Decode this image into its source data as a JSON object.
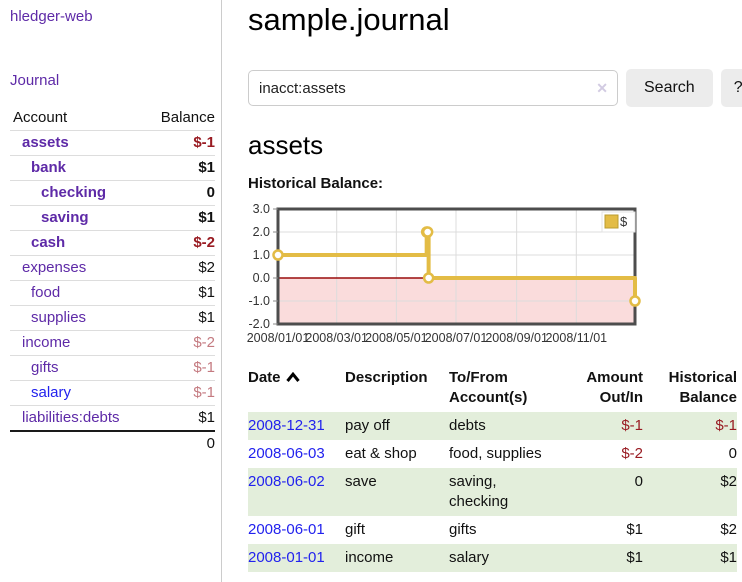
{
  "app": {
    "title": "hledger-web"
  },
  "colors": {
    "accent_purple": "#5e2aa7",
    "link_blue": "#2222ee",
    "negative_strong": "#991b22",
    "negative_soft": "#c47a80",
    "row_green": "#e3eedb",
    "chart_line_gold": "#e3bc45",
    "chart_negative_fill": "#fadcdc",
    "chart_zero_line": "#990b0b"
  },
  "sidebar": {
    "journal_link": "Journal",
    "accounts": {
      "col_account": "Account",
      "col_balance": "Balance",
      "rows": [
        {
          "account": "assets",
          "balance": "$-1",
          "level": 1,
          "bold": true,
          "neg": "strong"
        },
        {
          "account": "bank",
          "balance": "$1",
          "level": 2,
          "bold": true
        },
        {
          "account": "checking",
          "balance": "0",
          "level": 3,
          "bold": true
        },
        {
          "account": "saving",
          "balance": "$1",
          "level": 3,
          "bold": true
        },
        {
          "account": "cash",
          "balance": "$-2",
          "level": 2,
          "bold": true,
          "neg": "strong"
        },
        {
          "account": "expenses",
          "balance": "$2",
          "level": 1
        },
        {
          "account": "food",
          "balance": "$1",
          "level": 2
        },
        {
          "account": "supplies",
          "balance": "$1",
          "level": 2
        },
        {
          "account": "income",
          "balance": "$-2",
          "level": 1,
          "neg": "soft"
        },
        {
          "account": "gifts",
          "balance": "$-1",
          "level": 2,
          "neg": "soft"
        },
        {
          "account": "salary",
          "balance": "$-1",
          "level": 2,
          "neg": "soft",
          "blue": true
        },
        {
          "account": "liabilities:debts",
          "balance": "$1",
          "level": 1
        }
      ],
      "total": "0"
    }
  },
  "main": {
    "title": "sample.journal",
    "search": {
      "value": "inacct:assets",
      "clear_label": "✕",
      "search_button": "Search",
      "help_button": "?"
    },
    "account_heading": "assets",
    "section_label": "Historical Balance:"
  },
  "chart_data": {
    "type": "line",
    "title": "Historical Balance:",
    "step": "after",
    "series": [
      {
        "name": "$",
        "color": "#e3bc45",
        "points": [
          {
            "date": "2008-01-01",
            "value": 1
          },
          {
            "date": "2008-06-01",
            "value": 2
          },
          {
            "date": "2008-06-02",
            "value": 2
          },
          {
            "date": "2008-06-03",
            "value": 0
          },
          {
            "date": "2008-12-31",
            "value": -1
          }
        ]
      }
    ],
    "x_range": [
      "2008-01-01",
      "2008-12-31"
    ],
    "x_ticks": [
      "2008/01/01",
      "2008/03/01",
      "2008/05/01",
      "2008/07/01",
      "2008/09/01",
      "2008/11/01"
    ],
    "y_ticks": [
      3.0,
      2.0,
      1.0,
      0.0,
      -1.0,
      -2.0
    ],
    "ylim": [
      -2,
      3
    ],
    "grid": true,
    "legend": {
      "label": "$",
      "position": "top-right"
    },
    "negative_fill": "#fadcdc",
    "zero_line_color": "#990b0b"
  },
  "register": {
    "headers": {
      "date": "Date",
      "description": "Description",
      "tofrom_line1": "To/From",
      "tofrom_line2": "Account(s)",
      "amount_line1": "Amount",
      "amount_line2": "Out/In",
      "balance_line1": "Historical",
      "balance_line2": "Balance"
    },
    "rows": [
      {
        "date": "2008-12-31",
        "description": "pay off",
        "accounts": "debts",
        "amount": "$-1",
        "amount_neg": true,
        "balance": "$-1",
        "balance_neg": true
      },
      {
        "date": "2008-06-03",
        "description": "eat & shop",
        "accounts": "food, supplies",
        "amount": "$-2",
        "amount_neg": true,
        "balance": "0",
        "balance_neg": false
      },
      {
        "date": "2008-06-02",
        "description": "save",
        "accounts": "saving, checking",
        "amount": "0",
        "amount_neg": false,
        "balance": "$2",
        "balance_neg": false
      },
      {
        "date": "2008-06-01",
        "description": "gift",
        "accounts": "gifts",
        "amount": "$1",
        "amount_neg": false,
        "balance": "$2",
        "balance_neg": false
      },
      {
        "date": "2008-01-01",
        "description": "income",
        "accounts": "salary",
        "amount": "$1",
        "amount_neg": false,
        "balance": "$1",
        "balance_neg": false
      }
    ]
  }
}
